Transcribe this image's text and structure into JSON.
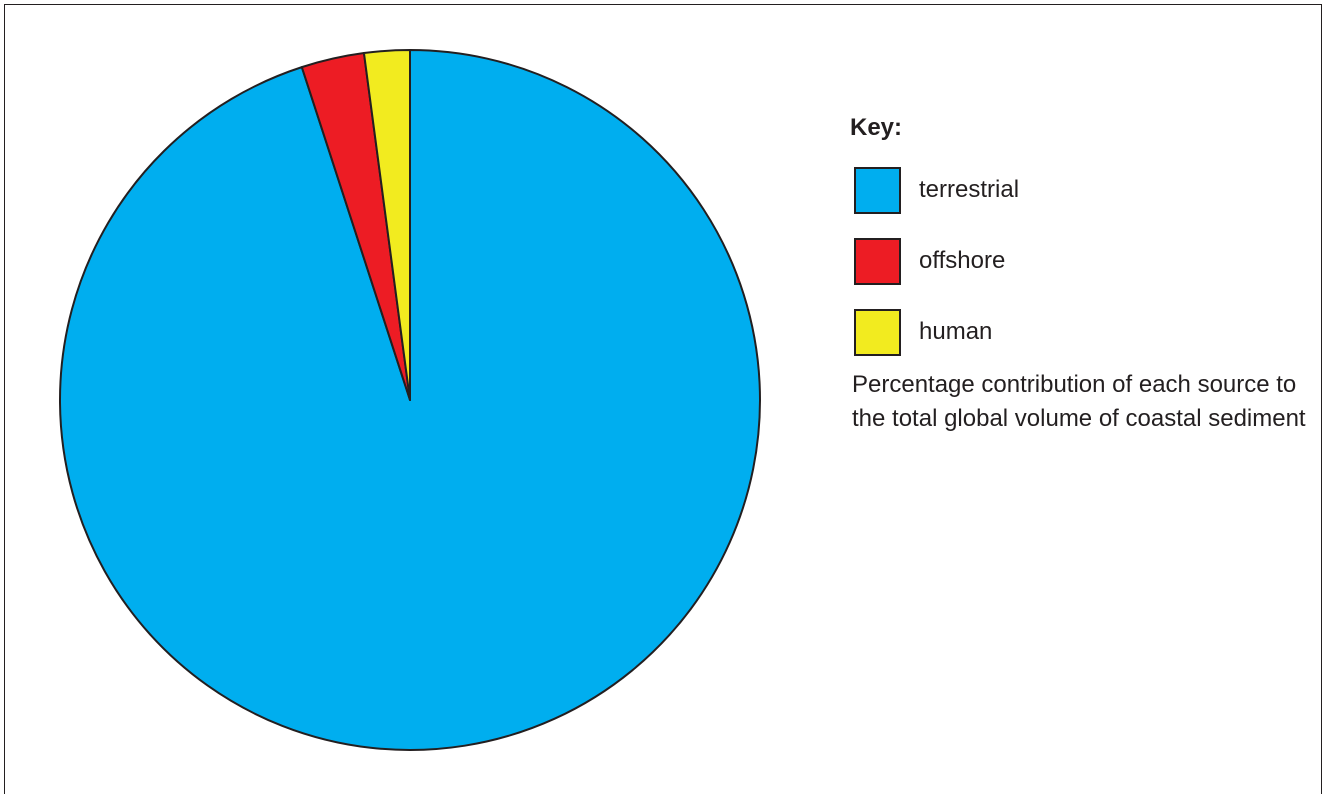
{
  "chart_data": {
    "type": "pie",
    "title": "",
    "slices": [
      {
        "label": "terrestrial",
        "value": 95,
        "color": "#00aeef"
      },
      {
        "label": "offshore",
        "value": 2.9,
        "color": "#ed1c24"
      },
      {
        "label": "human",
        "value": 2.1,
        "color": "#f2eb1f"
      }
    ],
    "legend": {
      "title": "Key:",
      "placement": "right"
    },
    "caption": "Percentage contribution of each source to the total global volume of coastal sediment"
  }
}
